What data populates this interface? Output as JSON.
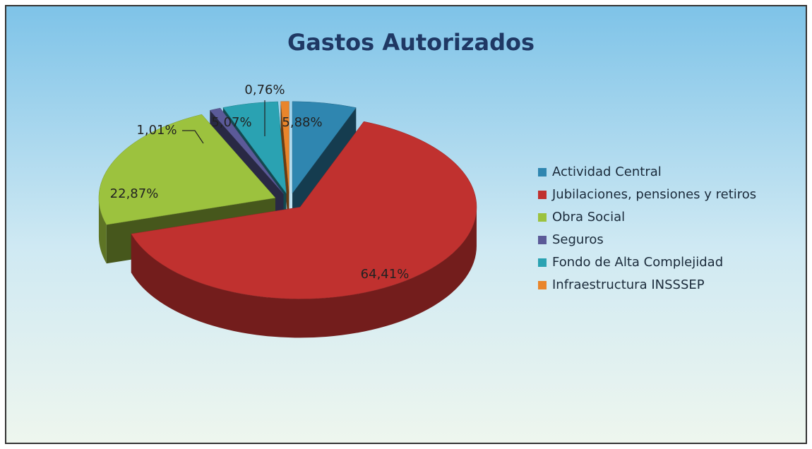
{
  "chart_data": {
    "type": "pie3d",
    "title": "Gastos Autorizados",
    "categories": [
      "Actividad Central",
      "Jubilaciones, pensiones y retiros",
      "Obra Social",
      "Seguros",
      "Fondo de Alta Complejidad",
      "Infraestructura INSSSEP"
    ],
    "values": [
      5.88,
      64.41,
      22.87,
      1.01,
      5.07,
      0.76
    ],
    "value_labels": [
      "5,88%",
      "64,41%",
      "22,87%",
      "1,01%",
      "5,07%",
      "0,76%"
    ],
    "colors": [
      "#2f86b0",
      "#c0312f",
      "#9cc23e",
      "#5b5a98",
      "#2aa2b2",
      "#e9852b"
    ],
    "legend": "right"
  }
}
